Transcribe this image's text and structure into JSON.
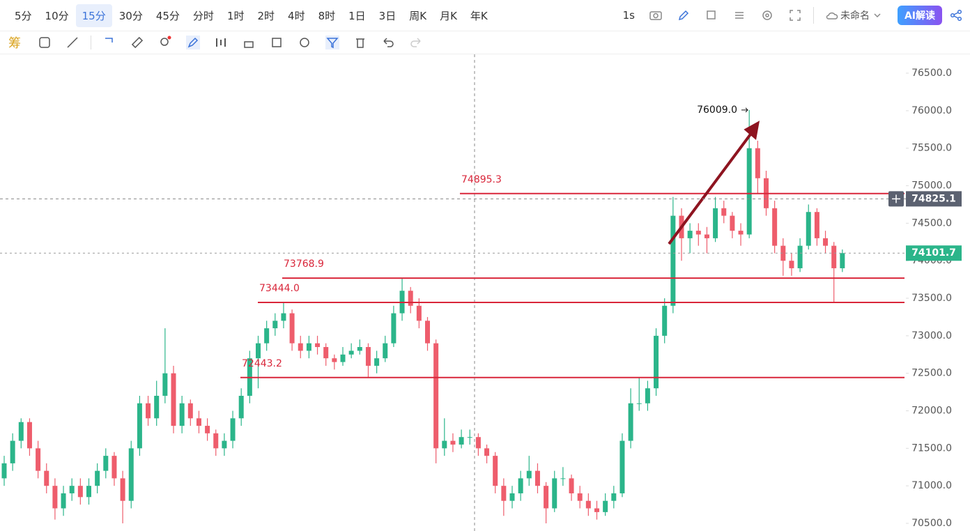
{
  "toolbar": {
    "intervals": [
      "5分",
      "10分",
      "15分",
      "30分",
      "45分",
      "分时",
      "1时",
      "2时",
      "4时",
      "8时",
      "1日",
      "3日",
      "周K",
      "月K",
      "年K"
    ],
    "refresh": "1s",
    "layout_name": "未命名",
    "ai_button": "AI解读",
    "chips_icon": "筹"
  },
  "chart_data": {
    "type": "candlestick",
    "up_color": "#2bb58a",
    "down_color": "#ee5d6c",
    "ylim": [
      70398,
      76751
    ],
    "yticks": [
      {
        "value": 70500,
        "label": "70500.0"
      },
      {
        "value": 71000,
        "label": "71000.0"
      },
      {
        "value": 71500,
        "label": "71500.0"
      },
      {
        "value": 72000,
        "label": "72000.0"
      },
      {
        "value": 72500,
        "label": "72500.0"
      },
      {
        "value": 73000,
        "label": "73000.0"
      },
      {
        "value": 73500,
        "label": "73500.0"
      },
      {
        "value": 74000,
        "label": "74000.0"
      },
      {
        "value": 74500,
        "label": "74500.0"
      },
      {
        "value": 75000,
        "label": "75000.0"
      },
      {
        "value": 75500,
        "label": "75500.0"
      },
      {
        "value": 76000,
        "label": "76000.0"
      },
      {
        "value": 76500,
        "label": "76500.0"
      }
    ],
    "grid": false,
    "levels": [
      74895.3,
      73768.9,
      {
        "value": 73444,
        "label": "73444.0"
      },
      72443.2
    ],
    "level_color": "#d9263a",
    "high_marker": {
      "value": 76009,
      "label": "76009.0"
    },
    "crosshair_price": 74825.1,
    "last_price": 74101.7,
    "ohlc": [
      [
        71100,
        71400,
        71000,
        71300
      ],
      [
        71300,
        71700,
        71200,
        71600
      ],
      [
        71600,
        71900,
        71500,
        71850
      ],
      [
        71850,
        71900,
        71400,
        71500
      ],
      [
        71500,
        71600,
        71100,
        71200
      ],
      [
        71200,
        71300,
        70900,
        71000
      ],
      [
        71000,
        71100,
        70550,
        70700
      ],
      [
        70700,
        71000,
        70600,
        70900
      ],
      [
        70900,
        71100,
        70800,
        71000
      ],
      [
        71000,
        71100,
        70750,
        70850
      ],
      [
        70850,
        71100,
        70750,
        71000
      ],
      [
        71000,
        71300,
        70900,
        71200
      ],
      [
        71200,
        71500,
        71100,
        71400
      ],
      [
        71400,
        71450,
        71000,
        71100
      ],
      [
        71100,
        71200,
        70500,
        70800
      ],
      [
        70800,
        71600,
        70700,
        71500
      ],
      [
        71500,
        72200,
        71400,
        72100
      ],
      [
        72100,
        72200,
        71800,
        71900
      ],
      [
        71900,
        72400,
        71800,
        72200
      ],
      [
        72200,
        73100,
        72100,
        72500
      ],
      [
        72500,
        72600,
        71700,
        71800
      ],
      [
        71800,
        72200,
        71700,
        72100
      ],
      [
        72100,
        72150,
        71800,
        71900
      ],
      [
        71900,
        72000,
        71700,
        71800
      ],
      [
        71800,
        71900,
        71600,
        71700
      ],
      [
        71700,
        71750,
        71400,
        71500
      ],
      [
        71500,
        71700,
        71400,
        71600
      ],
      [
        71600,
        72000,
        71500,
        71900
      ],
      [
        71900,
        72300,
        71800,
        72200
      ],
      [
        72200,
        72800,
        72100,
        72700
      ],
      [
        72700,
        73000,
        72300,
        72900
      ],
      [
        72900,
        73200,
        72800,
        73100
      ],
      [
        73100,
        73300,
        73000,
        73200
      ],
      [
        73200,
        73444,
        73100,
        73300
      ],
      [
        73300,
        73350,
        72800,
        72900
      ],
      [
        72900,
        73000,
        72700,
        72800
      ],
      [
        72800,
        73000,
        72700,
        72900
      ],
      [
        72900,
        73000,
        72750,
        72850
      ],
      [
        72850,
        72900,
        72600,
        72700
      ],
      [
        72700,
        72750,
        72550,
        72650
      ],
      [
        72650,
        72850,
        72600,
        72750
      ],
      [
        72750,
        72900,
        72700,
        72800
      ],
      [
        72800,
        72950,
        72750,
        72850
      ],
      [
        72850,
        72900,
        72450,
        72600
      ],
      [
        72600,
        72800,
        72500,
        72700
      ],
      [
        72700,
        73000,
        72650,
        72900
      ],
      [
        72900,
        73400,
        72850,
        73300
      ],
      [
        73300,
        73769,
        73200,
        73600
      ],
      [
        73600,
        73650,
        73300,
        73400
      ],
      [
        73400,
        73500,
        73100,
        73200
      ],
      [
        73200,
        73250,
        72800,
        72900
      ],
      [
        72900,
        72950,
        71300,
        71500
      ],
      [
        71500,
        71900,
        71400,
        71600
      ],
      [
        71600,
        71700,
        71450,
        71550
      ],
      [
        71550,
        71750,
        71500,
        71650
      ],
      [
        71650,
        71750,
        71550,
        71650
      ],
      [
        71650,
        71700,
        71400,
        71500
      ],
      [
        71500,
        71550,
        71300,
        71400
      ],
      [
        71400,
        71450,
        70900,
        71000
      ],
      [
        71000,
        71100,
        70600,
        70800
      ],
      [
        70800,
        71000,
        70700,
        70900
      ],
      [
        70900,
        71200,
        70800,
        71100
      ],
      [
        71100,
        71400,
        71000,
        71200
      ],
      [
        71200,
        71300,
        70900,
        71000
      ],
      [
        71000,
        71050,
        70500,
        70700
      ],
      [
        70700,
        71200,
        70650,
        71100
      ],
      [
        71100,
        71250,
        71000,
        71100
      ],
      [
        71100,
        71150,
        70800,
        70900
      ],
      [
        70900,
        71000,
        70700,
        70800
      ],
      [
        70800,
        70900,
        70600,
        70700
      ],
      [
        70700,
        70800,
        70550,
        70650
      ],
      [
        70650,
        70900,
        70600,
        70800
      ],
      [
        70800,
        71000,
        70700,
        70900
      ],
      [
        70900,
        71700,
        70850,
        71600
      ],
      [
        71600,
        72300,
        71500,
        72100
      ],
      [
        72100,
        72450,
        72000,
        72100
      ],
      [
        72100,
        72400,
        72000,
        72300
      ],
      [
        72300,
        73100,
        72200,
        73000
      ],
      [
        73000,
        73500,
        72900,
        73400
      ],
      [
        73400,
        74850,
        73300,
        74600
      ],
      [
        74600,
        74700,
        74000,
        74300
      ],
      [
        74300,
        74500,
        74100,
        74400
      ],
      [
        74400,
        74500,
        74200,
        74350
      ],
      [
        74350,
        74450,
        74100,
        74300
      ],
      [
        74300,
        74850,
        74250,
        74700
      ],
      [
        74700,
        74800,
        74500,
        74600
      ],
      [
        74600,
        74650,
        74300,
        74400
      ],
      [
        74400,
        74500,
        74200,
        74350
      ],
      [
        74350,
        76009,
        74300,
        75500
      ],
      [
        75500,
        75600,
        74900,
        75100
      ],
      [
        75100,
        75200,
        74600,
        74700
      ],
      [
        74700,
        74800,
        74100,
        74200
      ],
      [
        74200,
        74300,
        73800,
        74000
      ],
      [
        74000,
        74100,
        73800,
        73900
      ],
      [
        73900,
        74300,
        73850,
        74200
      ],
      [
        74200,
        74750,
        74150,
        74650
      ],
      [
        74650,
        74700,
        74200,
        74300
      ],
      [
        74300,
        74400,
        74100,
        74200
      ],
      [
        74200,
        74250,
        73450,
        73900
      ],
      [
        73900,
        74150,
        73850,
        74101.7
      ]
    ]
  }
}
